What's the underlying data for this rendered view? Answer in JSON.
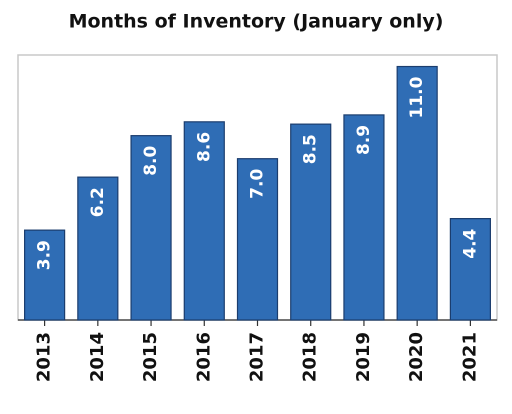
{
  "chart_data": {
    "type": "bar",
    "title": "Months of Inventory (January only)",
    "categories": [
      "2013",
      "2014",
      "2015",
      "2016",
      "2017",
      "2018",
      "2019",
      "2020",
      "2021"
    ],
    "values": [
      3.9,
      6.2,
      8.0,
      8.6,
      7.0,
      8.5,
      8.9,
      11.0,
      4.4
    ],
    "value_labels": [
      "3.9",
      "6.2",
      "8.0",
      "8.6",
      "7.0",
      "8.5",
      "8.9",
      "11.0",
      "4.4"
    ],
    "color": "#2f6db5",
    "ylim": [
      0,
      11.5
    ],
    "grid": false
  }
}
